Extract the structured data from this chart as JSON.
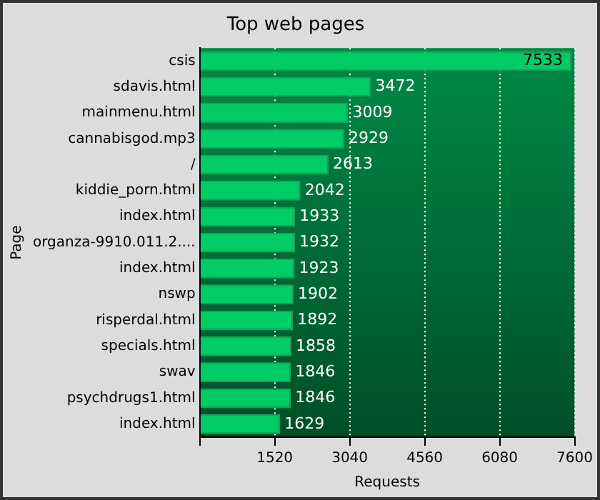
{
  "chart_data": {
    "type": "bar",
    "orientation": "horizontal",
    "title": "Top web pages",
    "xlabel": "Requests",
    "ylabel": "Page",
    "categories": [
      "csis",
      "sdavis.html",
      "mainmenu.html",
      "cannabisgod.mp3",
      "/",
      "kiddie_porn.html",
      "index.html",
      "organza-9910.011.2....",
      "index.html",
      "nswp",
      "risperdal.html",
      "specials.html",
      "swav",
      "psychdrugs1.html",
      "index.html"
    ],
    "values": [
      7533,
      3472,
      3009,
      2929,
      2613,
      2042,
      1933,
      1932,
      1923,
      1902,
      1892,
      1858,
      1846,
      1846,
      1629
    ],
    "color": "#00cc66",
    "xlim": [
      0,
      7600
    ],
    "xticks": [
      {
        "value": 0,
        "label": null
      },
      1520,
      3040,
      4560,
      6080,
      7600
    ],
    "grid": "x",
    "data_labels": true,
    "legend": false
  }
}
